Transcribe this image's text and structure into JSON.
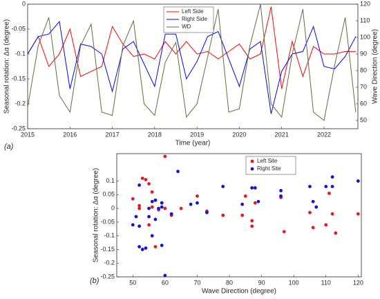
{
  "chart_data": [
    {
      "type": "line",
      "panel_label": "(a)",
      "xlabel": "Time (year)",
      "ylabel": "Seasonal rotation: Δα (degree)",
      "y2label": "Wave Direction (degree)",
      "x": [
        2015,
        2015.25,
        2015.5,
        2015.75,
        2016,
        2016.25,
        2016.5,
        2016.75,
        2017,
        2017.25,
        2017.5,
        2017.75,
        2018,
        2018.25,
        2018.5,
        2018.75,
        2019,
        2019.25,
        2019.5,
        2019.75,
        2020,
        2020.25,
        2020.5,
        2020.75,
        2021,
        2021.25,
        2021.5,
        2021.75,
        2022,
        2022.25,
        2022.5,
        2022.75
      ],
      "xlim": [
        2015,
        2022.8
      ],
      "xticks": [
        2015,
        2016,
        2017,
        2018,
        2019,
        2020,
        2021,
        2022
      ],
      "ylim": [
        -0.25,
        0
      ],
      "yticks": [
        -0.25,
        -0.2,
        -0.15,
        -0.1,
        -0.05,
        0
      ],
      "y2lim": [
        45,
        120
      ],
      "y2ticks": [
        50,
        60,
        70,
        80,
        90,
        100,
        110,
        120
      ],
      "legend": "upper center",
      "series": [
        {
          "name": "Left Side",
          "color": "#ff0000",
          "values": [
            -0.1,
            -0.065,
            -0.125,
            -0.1,
            -0.05,
            -0.145,
            -0.135,
            -0.125,
            -0.045,
            -0.08,
            -0.105,
            -0.1,
            -0.11,
            -0.075,
            -0.1,
            -0.075,
            -0.1,
            -0.095,
            -0.11,
            -0.095,
            -0.08,
            -0.11,
            -0.1,
            -0.005,
            -0.17,
            -0.075,
            -0.145,
            -0.085,
            -0.1,
            -0.1,
            -0.095,
            -0.095
          ]
        },
        {
          "name": "Right Side",
          "color": "#0000ff",
          "values": [
            -0.1,
            -0.065,
            -0.06,
            -0.035,
            -0.17,
            -0.08,
            -0.085,
            -0.1,
            -0.175,
            -0.09,
            -0.075,
            -0.12,
            -0.165,
            -0.06,
            -0.06,
            -0.15,
            -0.115,
            -0.065,
            -0.055,
            -0.11,
            -0.165,
            -0.09,
            -0.075,
            -0.22,
            -0.135,
            -0.1,
            -0.095,
            -0.045,
            -0.125,
            -0.13,
            -0.105,
            -0.065
          ]
        },
        {
          "name": "WD",
          "color": "#5a6e3c",
          "axis": "y2",
          "values": [
            58,
            95,
            112,
            65,
            55,
            95,
            108,
            55,
            53,
            95,
            110,
            60,
            53,
            85,
            97,
            52,
            60,
            88,
            117,
            55,
            57,
            95,
            120,
            60,
            52,
            90,
            117,
            55,
            50,
            83,
            112,
            55
          ]
        }
      ]
    },
    {
      "type": "scatter",
      "panel_label": "(b)",
      "xlabel": "Wave Direction (degree)",
      "ylabel": "Seasonal rotation: Δα (degree)",
      "xlim": [
        45,
        121
      ],
      "xticks": [
        50,
        60,
        70,
        80,
        90,
        100,
        110,
        120
      ],
      "ylim": [
        -0.25,
        0.2
      ],
      "yticks": [
        -0.25,
        -0.2,
        -0.15,
        -0.1,
        -0.05,
        0,
        0.05,
        0.1
      ],
      "legend": "upper right",
      "series": [
        {
          "name": "Left Site",
          "color": "#e8191e",
          "x": [
            50,
            52,
            52,
            53,
            54,
            55,
            55,
            56,
            56,
            57,
            57,
            58,
            59,
            60,
            60,
            62,
            65,
            70,
            73,
            78,
            84,
            85,
            87,
            87,
            88,
            96,
            97,
            105,
            106,
            110,
            111,
            112,
            113,
            120
          ],
          "values": [
            0.035,
            0.0,
            0.01,
            0.11,
            0.105,
            -0.06,
            0.09,
            0.005,
            0.06,
            0.03,
            -0.14,
            -0.005,
            0.02,
            0.19,
            0.0,
            -0.025,
            0,
            0.045,
            -0.01,
            -0.025,
            -0.025,
            0.045,
            -0.045,
            -0.065,
            0.02,
            0.04,
            -0.085,
            -0.015,
            -0.07,
            -0.06,
            0.055,
            -0.02,
            -0.09,
            -0.02
          ]
        },
        {
          "name": "Right Site",
          "color": "#1414d2",
          "x": [
            50,
            51,
            52,
            52,
            52,
            53,
            54,
            55,
            55,
            56,
            56,
            57,
            57,
            58,
            59,
            59,
            59,
            60,
            62,
            64,
            68,
            70,
            73,
            78,
            84,
            87,
            88,
            89,
            96,
            96,
            105,
            106,
            107,
            110,
            112,
            112,
            120
          ],
          "values": [
            -0.06,
            -0.03,
            -0.065,
            0.085,
            -0.14,
            -0.15,
            -0.145,
            0.0,
            -0.03,
            -0.1,
            0.025,
            -0.04,
            0.03,
            0.0,
            0.005,
            0.02,
            -0.135,
            -0.245,
            -0.02,
            0.135,
            0.015,
            0.02,
            -0.015,
            0.08,
            0.015,
            0.075,
            0.075,
            0.025,
            0.065,
            0.045,
            0.08,
            0.025,
            0.005,
            0.08,
            0.115,
            0.08,
            0.1
          ]
        }
      ]
    }
  ]
}
